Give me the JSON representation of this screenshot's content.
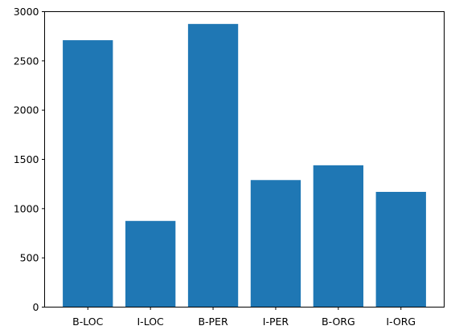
{
  "chart_data": {
    "type": "bar",
    "title": "",
    "xlabel": "",
    "ylabel": "",
    "categories": [
      "B-LOC",
      "I-LOC",
      "B-PER",
      "I-PER",
      "B-ORG",
      "I-ORG"
    ],
    "values": [
      2710,
      875,
      2875,
      1290,
      1440,
      1170
    ],
    "ylim": [
      0,
      3000
    ],
    "yticks": [
      0,
      500,
      1000,
      1500,
      2000,
      2500,
      3000
    ],
    "grid": false,
    "legend": "none",
    "bar_color": "#1f77b4"
  }
}
